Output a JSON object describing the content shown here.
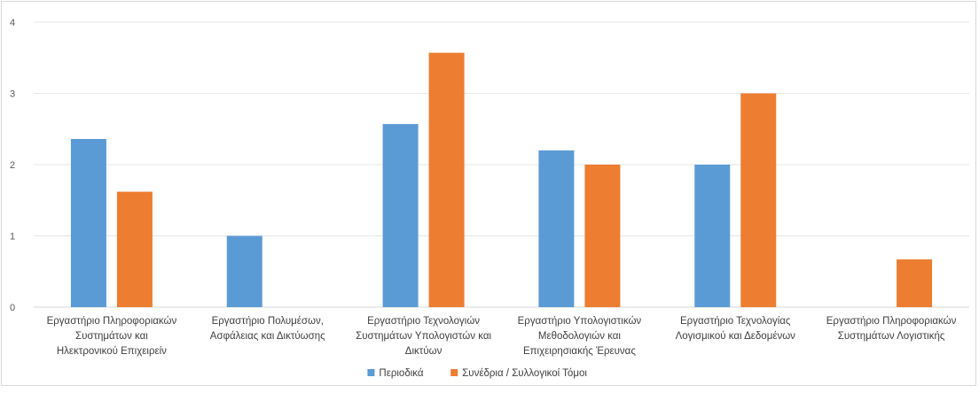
{
  "chart_data": {
    "type": "bar",
    "title": "",
    "xlabel": "",
    "ylabel": "",
    "ylim": [
      0,
      4
    ],
    "yticks": [
      "0",
      "1",
      "2",
      "3",
      "4"
    ],
    "grid": true,
    "legend_position": "bottom",
    "categories": [
      [
        "Εργαστήριο Πληροφοριακών",
        "Συστημάτων και",
        "Ηλεκτρονικού Επιχειρείν"
      ],
      [
        "Εργαστήριο Πολυμέσων,",
        "Ασφάλειας και Δικτύωσης"
      ],
      [
        "Εργαστήριο Τεχνολογιών",
        "Συστημάτων Υπολογιστών και",
        "Δικτύων"
      ],
      [
        "Εργαστήριο Υπολογιστικών",
        "Μεθοδολογιών και",
        "Επιχειρησιακής Έρευνας"
      ],
      [
        "Εργαστήριο Τεχνολογίας",
        "Λογισμικού και Δεδομένων"
      ],
      [
        "Εργαστήριο Πληροφοριακών",
        "Συστημάτων Λογιστικής"
      ]
    ],
    "series": [
      {
        "name": "Περιοδικά",
        "color": "#5b9bd5",
        "values": [
          2.36,
          1.0,
          2.57,
          2.2,
          2.0,
          null
        ]
      },
      {
        "name": "Συνέδρια / Συλλογικοί Τόμοι",
        "color": "#ed7d31",
        "values": [
          1.62,
          null,
          3.57,
          2.0,
          3.0,
          0.67
        ]
      }
    ]
  }
}
